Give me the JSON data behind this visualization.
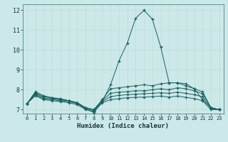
{
  "xlabel": "Humidex (Indice chaleur)",
  "bg_color": "#cce8e8",
  "line_color": "#1a6060",
  "marker": "+",
  "xlim": [
    -0.5,
    23.5
  ],
  "ylim": [
    6.8,
    12.3
  ],
  "yticks": [
    7,
    8,
    9,
    10,
    11,
    12
  ],
  "xticks": [
    0,
    1,
    2,
    3,
    4,
    5,
    6,
    7,
    8,
    9,
    10,
    11,
    12,
    13,
    14,
    15,
    16,
    17,
    18,
    19,
    20,
    21,
    22,
    23
  ],
  "lines": [
    [
      7.3,
      7.9,
      7.7,
      7.6,
      7.55,
      7.45,
      7.35,
      7.05,
      6.85,
      7.4,
      8.25,
      9.45,
      10.35,
      11.6,
      12.0,
      11.55,
      10.15,
      8.35,
      8.35,
      8.3,
      8.05,
      7.5,
      7.1,
      7.0
    ],
    [
      7.3,
      7.85,
      7.65,
      7.6,
      7.5,
      7.45,
      7.35,
      7.1,
      7.0,
      7.5,
      8.05,
      8.1,
      8.15,
      8.2,
      8.25,
      8.2,
      8.3,
      8.35,
      8.35,
      8.2,
      8.05,
      7.9,
      7.1,
      7.0
    ],
    [
      7.3,
      7.8,
      7.6,
      7.55,
      7.5,
      7.45,
      7.35,
      7.1,
      7.0,
      7.45,
      7.82,
      7.88,
      7.9,
      7.95,
      7.95,
      8.0,
      8.05,
      8.0,
      8.1,
      8.05,
      7.95,
      7.8,
      7.1,
      7.0
    ],
    [
      7.3,
      7.75,
      7.55,
      7.5,
      7.45,
      7.4,
      7.3,
      7.05,
      6.95,
      7.4,
      7.65,
      7.72,
      7.75,
      7.78,
      7.8,
      7.82,
      7.85,
      7.82,
      7.88,
      7.82,
      7.75,
      7.65,
      7.05,
      7.0
    ],
    [
      7.3,
      7.7,
      7.5,
      7.45,
      7.4,
      7.35,
      7.25,
      7.0,
      6.9,
      7.35,
      7.5,
      7.55,
      7.6,
      7.62,
      7.63,
      7.65,
      7.68,
      7.63,
      7.68,
      7.62,
      7.55,
      7.45,
      7.0,
      7.0
    ]
  ]
}
